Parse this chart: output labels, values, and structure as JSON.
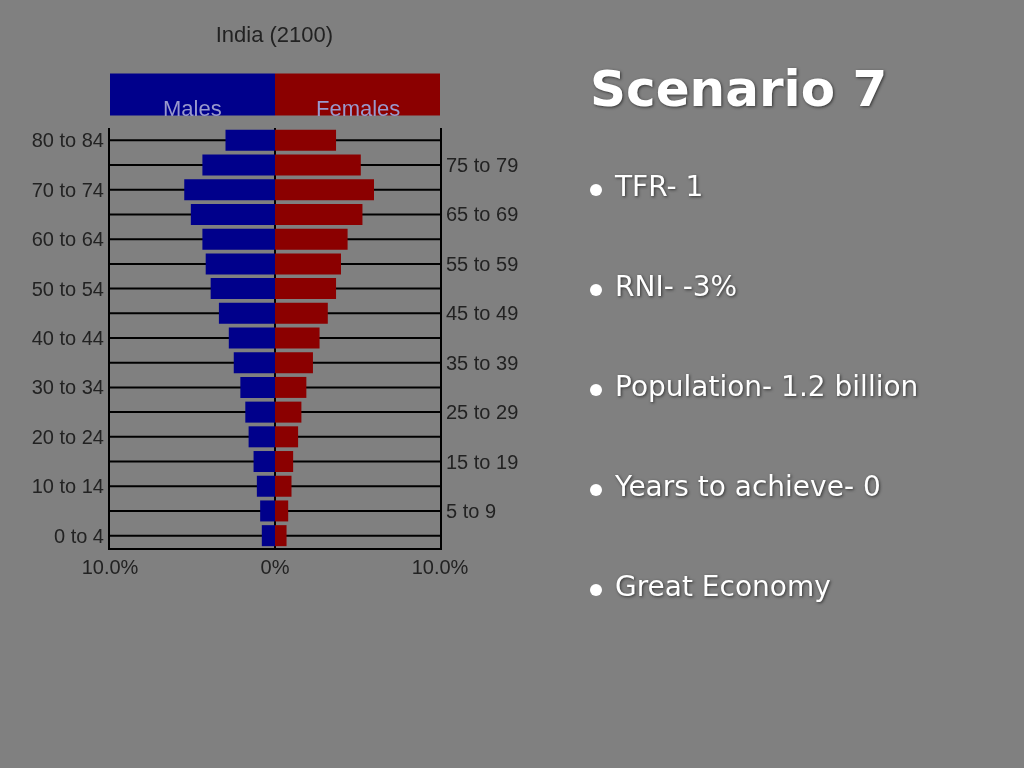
{
  "chart_data": {
    "type": "bar",
    "orientation": "horizontal",
    "title": "India (2100)",
    "categories": [
      "80 to 84",
      "75 to 79",
      "70 to 74",
      "65 to 69",
      "60 to 64",
      "55 to 59",
      "50 to 54",
      "45 to 49",
      "40 to 44",
      "35 to 39",
      "30 to 34",
      "25 to 29",
      "20 to 24",
      "15 to 19",
      "10 to 14",
      "5 to 9",
      "0 to 4"
    ],
    "series": [
      {
        "name": "Males",
        "color": "#00008b",
        "values": [
          -3.0,
          -4.4,
          -5.5,
          -5.1,
          -4.4,
          -4.2,
          -3.9,
          -3.4,
          -2.8,
          -2.5,
          -2.1,
          -1.8,
          -1.6,
          -1.3,
          -1.1,
          -0.9,
          -0.8
        ]
      },
      {
        "name": "Females",
        "color": "#8b0000",
        "values": [
          3.7,
          5.2,
          6.0,
          5.3,
          4.4,
          4.0,
          3.7,
          3.2,
          2.7,
          2.3,
          1.9,
          1.6,
          1.4,
          1.1,
          1.0,
          0.8,
          0.7
        ]
      }
    ],
    "xlim": [
      -10,
      10
    ],
    "xticks": [
      {
        "value": -10,
        "label": "10.0%"
      },
      {
        "value": 0,
        "label": "0%"
      },
      {
        "value": 10,
        "label": "10.0%"
      }
    ],
    "grid": true,
    "stacked": true,
    "legend": "top",
    "annotations": [
      "Scenario 7",
      "TFR- 1",
      "RNI-  -3%",
      "Population- 1.2 billion",
      "Years to achieve- 0",
      "Great Economy"
    ]
  }
}
